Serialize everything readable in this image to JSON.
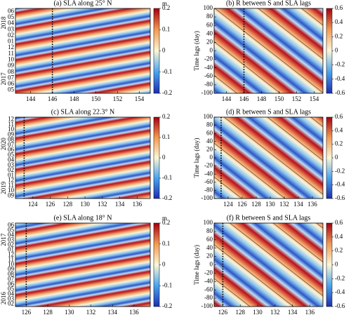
{
  "chart_data": [
    {
      "type": "heatmap",
      "title": "(a) SLA along 25° N",
      "xlim": [
        142.6,
        155
      ],
      "xticks": [
        144,
        146,
        148,
        150,
        152,
        154
      ],
      "ycategories": [
        "05",
        "06",
        "07",
        "08",
        "09",
        "10",
        "11",
        "12",
        "01",
        "02",
        "03",
        "04",
        "05",
        "06"
      ],
      "years": [
        "2017",
        "2018"
      ],
      "colorbar": {
        "label": "m",
        "lim": [
          -0.2,
          0.2
        ],
        "ticks": [
          -0.2,
          -0.1,
          0,
          0.1,
          0.2
        ]
      },
      "vline": 146
    },
    {
      "type": "heatmap",
      "title": "(b) R between S and SLA lags",
      "xlim": [
        142.6,
        155
      ],
      "xticks": [
        144,
        146,
        148,
        150,
        152,
        154
      ],
      "ylabel": "Time lags (day)",
      "ylim": [
        -100,
        100
      ],
      "yticks": [
        -100,
        -80,
        -60,
        -40,
        -20,
        0,
        20,
        40,
        60,
        80,
        100
      ],
      "colorbar": {
        "lim": [
          -0.6,
          0.6
        ],
        "ticks": [
          -0.6,
          -0.4,
          -0.2,
          0,
          0.2,
          0.4,
          0.6
        ]
      },
      "vline": 146
    },
    {
      "type": "heatmap",
      "title": "(c) SLA along 22.3° N",
      "xlim": [
        122,
        137.5
      ],
      "xticks": [
        124,
        126,
        128,
        130,
        132,
        134,
        136
      ],
      "ycategories": [
        "09",
        "10",
        "11",
        "12",
        "01",
        "02",
        "03",
        "04",
        "05",
        "06",
        "07",
        "08",
        "09",
        "10",
        "11",
        "12"
      ],
      "years": [
        "2019",
        "2020"
      ],
      "colorbar": {
        "lim": [
          -0.2,
          0.2
        ],
        "ticks": [
          -0.2,
          -0.1,
          0,
          0.1,
          0.2
        ]
      },
      "vline": 123
    },
    {
      "type": "heatmap",
      "title": "(d) R between S and SLA lags",
      "xlim": [
        122,
        137.5
      ],
      "xticks": [
        124,
        126,
        128,
        130,
        132,
        134,
        136
      ],
      "ylabel": "Time lags (day)",
      "ylim": [
        -100,
        100
      ],
      "yticks": [
        -100,
        -80,
        -60,
        -40,
        -20,
        0,
        20,
        40,
        60,
        80,
        100
      ],
      "colorbar": {
        "lim": [
          -0.6,
          0.6
        ],
        "ticks": [
          -0.6,
          -0.4,
          -0.2,
          0,
          0.2,
          0.4,
          0.6
        ]
      },
      "vline": 123
    },
    {
      "type": "heatmap",
      "title": "(e) SLA along 18° N",
      "xlim": [
        125,
        137.5
      ],
      "xticks": [
        126,
        128,
        130,
        132,
        134,
        136
      ],
      "ycategories": [
        "02",
        "03",
        "04",
        "05",
        "06",
        "07",
        "08",
        "09",
        "10",
        "11",
        "12",
        "01",
        "02",
        "03",
        "04",
        "05",
        "06"
      ],
      "years": [
        "2016",
        "2017"
      ],
      "colorbar": {
        "label": "m",
        "lim": [
          -0.2,
          0.2
        ],
        "ticks": [
          -0.2,
          -0.1,
          0,
          0.1,
          0.2
        ]
      },
      "vline": 126
    },
    {
      "type": "heatmap",
      "title": "(f) R between S and SLA lags",
      "xlim": [
        125,
        137.5
      ],
      "xticks": [
        126,
        128,
        130,
        132,
        134,
        136
      ],
      "ylabel": "Time lags (day)",
      "ylim": [
        -100,
        100
      ],
      "yticks": [
        -100,
        -80,
        -60,
        -40,
        -20,
        0,
        20,
        40,
        60,
        80,
        100
      ],
      "colorbar": {
        "lim": [
          -0.6,
          0.6
        ],
        "ticks": [
          -0.6,
          -0.4,
          -0.2,
          0,
          0.2,
          0.4,
          0.6
        ]
      },
      "vline": 126
    }
  ]
}
